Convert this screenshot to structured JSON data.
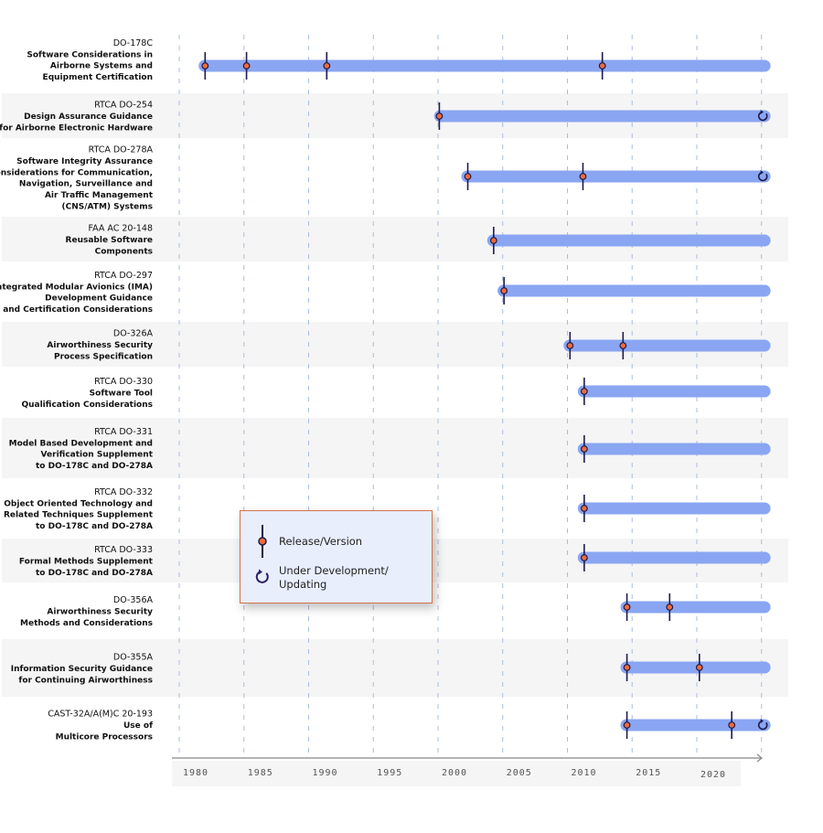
{
  "chart_data": {
    "type": "timeline",
    "title": "",
    "xlabel": "",
    "ylabel": "",
    "xlim": [
      1980,
      2025
    ],
    "x_ticks": [
      "1980",
      "1985",
      "1990",
      "1995",
      "2000",
      "2005",
      "2010",
      "2015",
      "2020"
    ],
    "grid": true,
    "legend_placement": "center-left",
    "colors": {
      "bar": "#8aa6f2",
      "marker_fill": "#f06b3a",
      "marker_line": "#1e1b4b",
      "row_alt": "#f5f5f5",
      "grid": "#a9bde0"
    },
    "rows": [
      {
        "code": "DO-178C",
        "title": [
          "Software Considerations in",
          "Airborne Systems and",
          "Equipment Certification"
        ],
        "start": 1981.5,
        "end": 2025.7,
        "releases": [
          1982,
          1985.2,
          1991.4,
          2012.7
        ],
        "updating": false
      },
      {
        "code": "RTCA DO-254",
        "title": [
          "Design Assurance Guidance",
          "for Airborne Electronic Hardware"
        ],
        "start": 1999.7,
        "end": 2025.7,
        "releases": [
          2000.1
        ],
        "updating": true
      },
      {
        "code": "RTCA DO-278A",
        "title": [
          "Software Integrity Assurance",
          "Considerations for Communication,",
          "Navigation, Surveillance and",
          "Air Traffic Management",
          "(CNS/ATM) Systems"
        ],
        "start": 2001.8,
        "end": 2025.7,
        "releases": [
          2002.3,
          2011.2
        ],
        "updating": true
      },
      {
        "code": "FAA AC 20-148",
        "title": [
          "Reusable Software",
          "Components"
        ],
        "start": 2003.8,
        "end": 2025.7,
        "releases": [
          2004.3
        ],
        "updating": false
      },
      {
        "code": "RTCA DO-297",
        "title": [
          "Integrated Modular Avionics (IMA)",
          "Development Guidance",
          "and Certification Considerations"
        ],
        "start": 2004.6,
        "end": 2025.7,
        "releases": [
          2005.1
        ],
        "updating": false
      },
      {
        "code": "DO-326A",
        "title": [
          "Airworthiness Security",
          "Process Specification"
        ],
        "start": 2009.7,
        "end": 2025.7,
        "releases": [
          2010.2,
          2014.3
        ],
        "updating": false
      },
      {
        "code": "RTCA DO-330",
        "title": [
          "Software Tool",
          "Qualification Considerations"
        ],
        "start": 2010.8,
        "end": 2025.7,
        "releases": [
          2011.3
        ],
        "updating": false
      },
      {
        "code": "RTCA DO-331",
        "title": [
          "Model Based Development and",
          "Verification Supplement",
          "to DO-178C and DO-278A"
        ],
        "start": 2010.8,
        "end": 2025.7,
        "releases": [
          2011.3
        ],
        "updating": false
      },
      {
        "code": "RTCA DO-332",
        "title": [
          "Object Oriented Technology and",
          "Related Techniques Supplement",
          "to DO-178C and DO-278A"
        ],
        "start": 2010.8,
        "end": 2025.7,
        "releases": [
          2011.3
        ],
        "updating": false
      },
      {
        "code": "RTCA DO-333",
        "title": [
          "Formal Methods Supplement",
          "to DO-178C and DO-278A"
        ],
        "start": 2010.8,
        "end": 2025.7,
        "releases": [
          2011.3
        ],
        "updating": false
      },
      {
        "code": "DO-356A",
        "title": [
          "Airworthiness Security",
          "Methods and Considerations"
        ],
        "start": 2014.1,
        "end": 2025.7,
        "releases": [
          2014.6,
          2017.9
        ],
        "updating": false
      },
      {
        "code": "DO-355A",
        "title": [
          "Information Security Guidance",
          "for Continuing Airworthiness"
        ],
        "start": 2014.1,
        "end": 2025.7,
        "releases": [
          2014.6,
          2020.2
        ],
        "updating": false
      },
      {
        "code": "CAST-32A/A(M)C 20-193",
        "title": [
          "Use of",
          "Multicore Processors"
        ],
        "start": 2014.1,
        "end": 2025.7,
        "releases": [
          2014.6,
          2022.7
        ],
        "updating": true
      }
    ]
  },
  "legend": {
    "release": "Release/Version",
    "updating_line1": "Under Development/",
    "updating_line2": "Updating"
  }
}
